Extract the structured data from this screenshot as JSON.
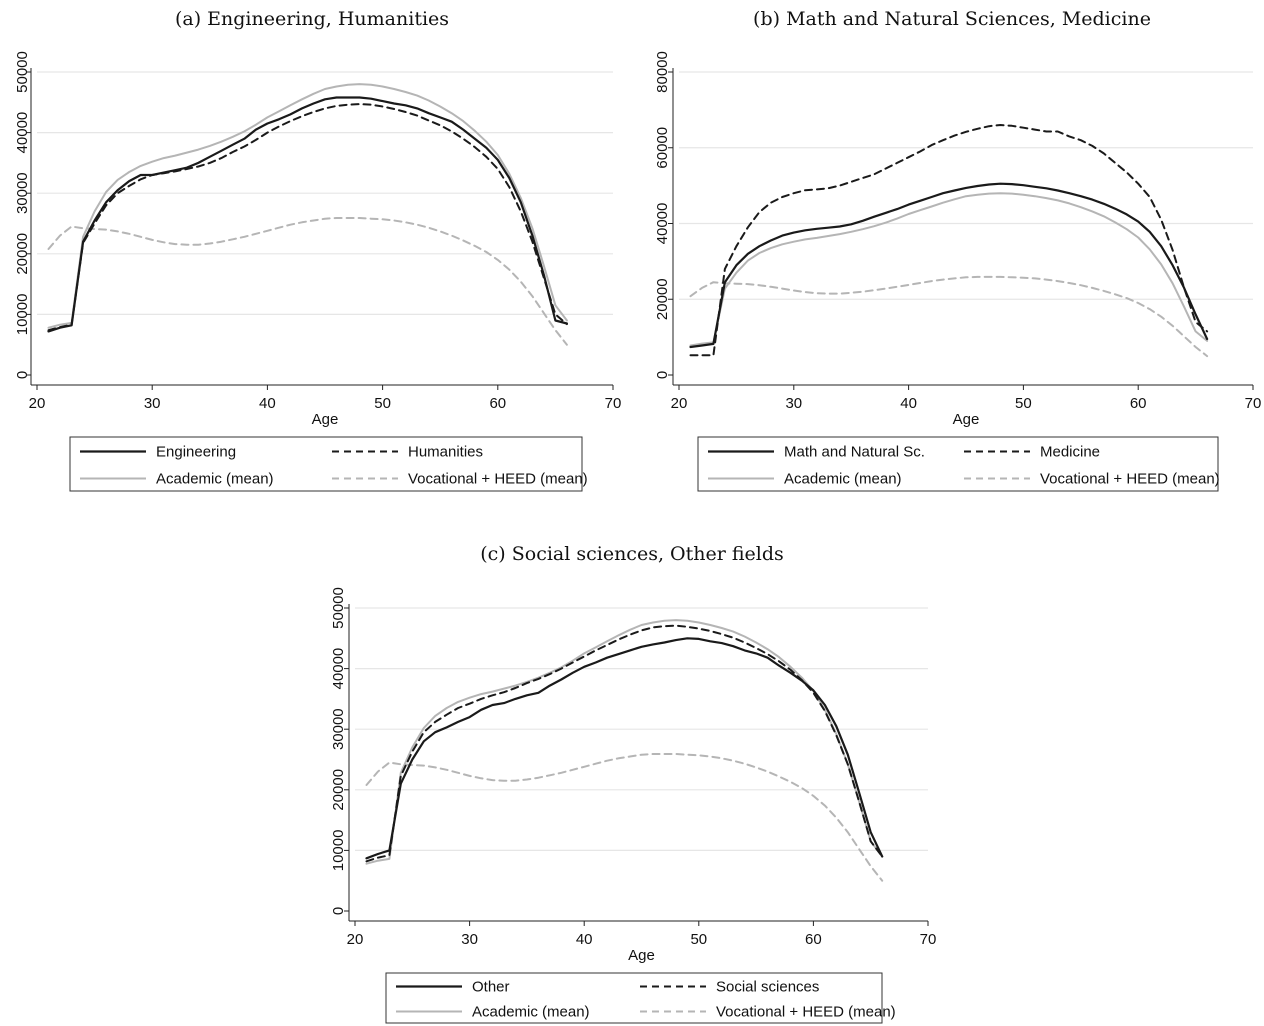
{
  "panels": [
    {
      "title": "(a) Engineering, Humanities",
      "xlabel": "Age",
      "xlim": [
        20,
        70
      ],
      "ylim": [
        0,
        50000
      ],
      "xticks": [
        20,
        30,
        40,
        50,
        60,
        70
      ],
      "yticks": [
        0,
        10000,
        20000,
        30000,
        40000,
        50000
      ],
      "legend": [
        "Engineering",
        "Humanities",
        "Academic (mean)",
        "Vocational + HEED (mean)"
      ]
    },
    {
      "title": "(b) Math and Natural Sciences, Medicine",
      "xlabel": "Age",
      "xlim": [
        20,
        70
      ],
      "ylim": [
        0,
        80000
      ],
      "xticks": [
        20,
        30,
        40,
        50,
        60,
        70
      ],
      "yticks": [
        0,
        20000,
        40000,
        60000,
        80000
      ],
      "legend": [
        "Math and Natural Sc.",
        "Medicine",
        "Academic (mean)",
        "Vocational + HEED (mean)"
      ]
    },
    {
      "title": "(c) Social sciences, Other fields",
      "xlabel": "Age",
      "xlim": [
        20,
        70
      ],
      "ylim": [
        0,
        50000
      ],
      "xticks": [
        20,
        30,
        40,
        50,
        60,
        70
      ],
      "yticks": [
        0,
        10000,
        20000,
        30000,
        40000,
        50000
      ],
      "legend": [
        "Other",
        "Social sciences",
        "Academic (mean)",
        "Vocational + HEED (mean)"
      ]
    }
  ],
  "colors": {
    "field_solid": "#1a1a1a",
    "field_dashed": "#1a1a1a",
    "academic": "#b5b5b5",
    "vocational": "#b5b5b5",
    "grid": "#e6e6e6"
  },
  "chart_data": [
    {
      "type": "line",
      "title": "(a) Engineering, Humanities",
      "xlabel": "Age",
      "ylabel": "",
      "xlim": [
        20,
        70
      ],
      "ylim": [
        0,
        50000
      ],
      "grid": true,
      "legend_position": "bottom",
      "x": [
        21,
        22,
        23,
        24,
        25,
        26,
        27,
        28,
        29,
        30,
        31,
        32,
        33,
        34,
        35,
        36,
        37,
        38,
        39,
        40,
        41,
        42,
        43,
        44,
        45,
        46,
        47,
        48,
        49,
        50,
        51,
        52,
        53,
        54,
        55,
        56,
        57,
        58,
        59,
        60,
        61,
        62,
        63,
        64,
        65,
        66
      ],
      "series": [
        {
          "name": "Engineering",
          "style": "solid-dark",
          "values": [
            7200,
            7800,
            8200,
            22000,
            25500,
            28500,
            30500,
            32000,
            33000,
            33000,
            33400,
            33800,
            34200,
            35000,
            36000,
            37000,
            38000,
            39000,
            40500,
            41500,
            42200,
            43000,
            44000,
            44800,
            45500,
            45800,
            45800,
            45800,
            45600,
            45200,
            44800,
            44500,
            44000,
            43200,
            42500,
            41800,
            40500,
            39000,
            37500,
            35500,
            32500,
            28500,
            23000,
            16500,
            9000,
            8500
          ]
        },
        {
          "name": "Humanities",
          "style": "dashed-dark",
          "values": [
            7400,
            7900,
            8300,
            21800,
            25000,
            28000,
            30000,
            31200,
            32300,
            33000,
            33300,
            33600,
            34000,
            34400,
            35000,
            35800,
            36800,
            37700,
            38800,
            40000,
            41000,
            41900,
            42700,
            43400,
            44000,
            44400,
            44600,
            44700,
            44600,
            44300,
            43900,
            43400,
            42800,
            42000,
            41200,
            40200,
            39000,
            37600,
            36000,
            34000,
            31000,
            27000,
            22000,
            16000,
            10000,
            8400
          ]
        },
        {
          "name": "Academic (mean)",
          "style": "solid-light",
          "values": [
            7800,
            8300,
            8600,
            22800,
            27000,
            30200,
            32200,
            33500,
            34500,
            35200,
            35800,
            36200,
            36700,
            37200,
            37800,
            38500,
            39300,
            40200,
            41300,
            42500,
            43500,
            44500,
            45500,
            46400,
            47200,
            47600,
            47900,
            48000,
            47900,
            47600,
            47200,
            46700,
            46100,
            45300,
            44300,
            43200,
            41900,
            40300,
            38500,
            36300,
            33200,
            29200,
            24200,
            18000,
            11500,
            9000
          ]
        },
        {
          "name": "Vocational + HEED (mean)",
          "style": "dashed-light",
          "values": [
            20800,
            23000,
            24500,
            24200,
            24100,
            24000,
            23700,
            23300,
            22800,
            22300,
            21900,
            21600,
            21500,
            21500,
            21700,
            22000,
            22400,
            22800,
            23300,
            23800,
            24300,
            24800,
            25200,
            25500,
            25800,
            25900,
            25900,
            25900,
            25800,
            25700,
            25500,
            25200,
            24800,
            24300,
            23700,
            23000,
            22200,
            21300,
            20300,
            19000,
            17400,
            15400,
            13000,
            10200,
            7400,
            5000
          ]
        }
      ]
    },
    {
      "type": "line",
      "title": "(b) Math and Natural Sciences, Medicine",
      "xlabel": "Age",
      "ylabel": "",
      "xlim": [
        20,
        70
      ],
      "ylim": [
        0,
        80000
      ],
      "grid": true,
      "legend_position": "bottom",
      "x": [
        21,
        22,
        23,
        24,
        25,
        26,
        27,
        28,
        29,
        30,
        31,
        32,
        33,
        34,
        35,
        36,
        37,
        38,
        39,
        40,
        41,
        42,
        43,
        44,
        45,
        46,
        47,
        48,
        49,
        50,
        51,
        52,
        53,
        54,
        55,
        56,
        57,
        58,
        59,
        60,
        61,
        62,
        63,
        64,
        65,
        66
      ],
      "series": [
        {
          "name": "Math and Natural Sc.",
          "style": "solid-dark",
          "values": [
            7400,
            7800,
            8200,
            24500,
            29000,
            32000,
            34000,
            35500,
            36800,
            37600,
            38200,
            38600,
            38900,
            39200,
            39800,
            40700,
            41800,
            42800,
            43800,
            45000,
            46000,
            47000,
            48000,
            48700,
            49400,
            49900,
            50300,
            50500,
            50400,
            50100,
            49700,
            49300,
            48700,
            48000,
            47200,
            46300,
            45200,
            43900,
            42400,
            40500,
            37800,
            34000,
            29000,
            23000,
            16000,
            9500
          ]
        },
        {
          "name": "Medicine",
          "style": "dashed-dark",
          "values": [
            5200,
            5200,
            5200,
            28000,
            34000,
            39000,
            43000,
            45500,
            47000,
            48000,
            48800,
            49000,
            49300,
            50000,
            51000,
            52000,
            53000,
            54500,
            56000,
            57500,
            59000,
            60700,
            62000,
            63200,
            64200,
            65000,
            65700,
            66000,
            65800,
            65300,
            64800,
            64300,
            64300,
            63000,
            62000,
            60500,
            58500,
            56000,
            53500,
            50500,
            47000,
            41000,
            33000,
            23000,
            14000,
            11500
          ]
        },
        {
          "name": "Academic (mean)",
          "style": "solid-light",
          "values": [
            7800,
            8300,
            8600,
            22800,
            27000,
            30200,
            32200,
            33500,
            34500,
            35200,
            35800,
            36200,
            36700,
            37200,
            37800,
            38500,
            39300,
            40200,
            41300,
            42500,
            43500,
            44500,
            45500,
            46400,
            47200,
            47600,
            47900,
            48000,
            47900,
            47600,
            47200,
            46700,
            46100,
            45300,
            44300,
            43200,
            41900,
            40300,
            38500,
            36300,
            33200,
            29200,
            24200,
            18000,
            11500,
            9000
          ]
        },
        {
          "name": "Vocational + HEED (mean)",
          "style": "dashed-light",
          "values": [
            20800,
            23000,
            24500,
            24200,
            24100,
            24000,
            23700,
            23300,
            22800,
            22300,
            21900,
            21600,
            21500,
            21500,
            21700,
            22000,
            22400,
            22800,
            23300,
            23800,
            24300,
            24800,
            25200,
            25500,
            25800,
            25900,
            25900,
            25900,
            25800,
            25700,
            25500,
            25200,
            24800,
            24300,
            23700,
            23000,
            22200,
            21300,
            20300,
            19000,
            17400,
            15400,
            13000,
            10200,
            7400,
            5000
          ]
        }
      ]
    },
    {
      "type": "line",
      "title": "(c) Social sciences, Other fields",
      "xlabel": "Age",
      "ylabel": "",
      "xlim": [
        20,
        70
      ],
      "ylim": [
        0,
        50000
      ],
      "grid": true,
      "legend_position": "bottom",
      "x": [
        21,
        22,
        23,
        24,
        25,
        26,
        27,
        28,
        29,
        30,
        31,
        32,
        33,
        34,
        35,
        36,
        37,
        38,
        39,
        40,
        41,
        42,
        43,
        44,
        45,
        46,
        47,
        48,
        49,
        50,
        51,
        52,
        53,
        54,
        55,
        56,
        57,
        58,
        59,
        60,
        61,
        62,
        63,
        64,
        65,
        66
      ],
      "series": [
        {
          "name": "Other",
          "style": "solid-dark",
          "values": [
            8700,
            9400,
            10000,
            21000,
            25000,
            28000,
            29500,
            30300,
            31200,
            32000,
            33200,
            34000,
            34300,
            35000,
            35600,
            36000,
            37200,
            38200,
            39300,
            40300,
            41000,
            41800,
            42400,
            43000,
            43600,
            44000,
            44300,
            44700,
            45000,
            44900,
            44500,
            44200,
            43700,
            43000,
            42500,
            41800,
            40500,
            39300,
            38000,
            36400,
            34000,
            30500,
            25800,
            19500,
            13000,
            9000
          ]
        },
        {
          "name": "Social sciences",
          "style": "dashed-dark",
          "values": [
            8200,
            8800,
            9200,
            22300,
            26300,
            29500,
            31200,
            32400,
            33500,
            34200,
            35000,
            35600,
            36100,
            36800,
            37600,
            38300,
            39100,
            40000,
            41000,
            42000,
            43000,
            43900,
            44800,
            45600,
            46300,
            46800,
            47000,
            47100,
            46900,
            46600,
            46200,
            45700,
            45100,
            44300,
            43400,
            42400,
            41200,
            39800,
            38100,
            36000,
            33000,
            29000,
            24200,
            18000,
            11500,
            9000
          ]
        },
        {
          "name": "Academic (mean)",
          "style": "solid-light",
          "values": [
            7800,
            8300,
            8600,
            22800,
            27000,
            30200,
            32200,
            33500,
            34500,
            35200,
            35800,
            36200,
            36700,
            37200,
            37800,
            38500,
            39300,
            40200,
            41300,
            42500,
            43500,
            44500,
            45500,
            46400,
            47200,
            47600,
            47900,
            48000,
            47900,
            47600,
            47200,
            46700,
            46100,
            45300,
            44300,
            43200,
            41900,
            40300,
            38500,
            36300,
            33200,
            29200,
            24200,
            18000,
            11500,
            9000
          ]
        },
        {
          "name": "Vocational + HEED (mean)",
          "style": "dashed-light",
          "values": [
            20800,
            23000,
            24500,
            24200,
            24100,
            24000,
            23700,
            23300,
            22800,
            22300,
            21900,
            21600,
            21500,
            21500,
            21700,
            22000,
            22400,
            22800,
            23300,
            23800,
            24300,
            24800,
            25200,
            25500,
            25800,
            25900,
            25900,
            25900,
            25800,
            25700,
            25500,
            25200,
            24800,
            24300,
            23700,
            23000,
            22200,
            21300,
            20300,
            19000,
            17400,
            15400,
            13000,
            10200,
            7400,
            5000
          ]
        }
      ]
    }
  ]
}
